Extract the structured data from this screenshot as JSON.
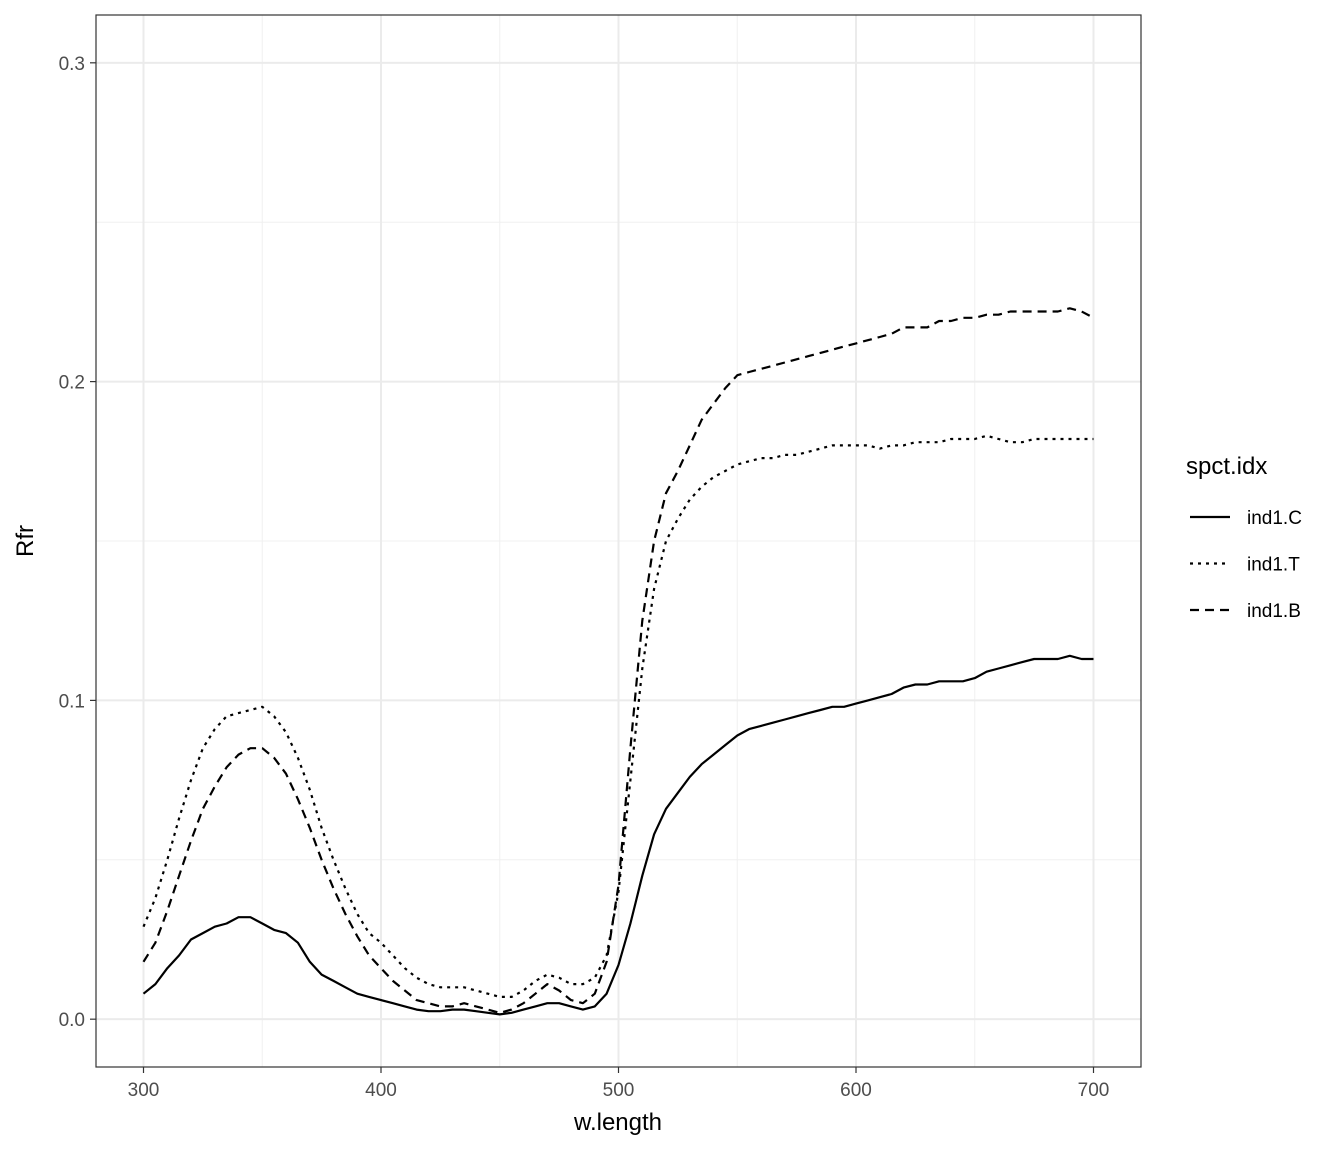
{
  "chart_data": {
    "type": "line",
    "xlabel": "w.length",
    "ylabel": "Rfr",
    "xlim": [
      280,
      720
    ],
    "ylim": [
      -0.015,
      0.315
    ],
    "x_ticks": [
      300,
      400,
      500,
      600,
      700
    ],
    "x_tick_labels": [
      "300",
      "400",
      "500",
      "600",
      "700"
    ],
    "y_ticks": [
      0.0,
      0.1,
      0.2,
      0.3
    ],
    "y_tick_labels": [
      "0.0",
      "0.1",
      "0.2",
      "0.3"
    ],
    "x_minor_ticks": [
      350,
      450,
      550,
      650
    ],
    "y_minor_ticks": [
      0.05,
      0.15,
      0.25
    ],
    "grid": true,
    "legend": {
      "title": "spct.idx",
      "position": "right",
      "entries": [
        "ind1.C",
        "ind1.T",
        "ind1.B"
      ]
    },
    "series": [
      {
        "name": "ind1.C",
        "linetype": "solid",
        "x": [
          300,
          305,
          310,
          315,
          320,
          325,
          330,
          335,
          340,
          345,
          350,
          355,
          360,
          365,
          370,
          375,
          380,
          385,
          390,
          395,
          400,
          405,
          410,
          415,
          420,
          425,
          430,
          435,
          440,
          445,
          450,
          455,
          460,
          465,
          470,
          475,
          480,
          485,
          490,
          495,
          500,
          505,
          510,
          515,
          520,
          525,
          530,
          535,
          540,
          545,
          550,
          555,
          560,
          565,
          570,
          575,
          580,
          585,
          590,
          595,
          600,
          605,
          610,
          615,
          620,
          625,
          630,
          635,
          640,
          645,
          650,
          655,
          660,
          665,
          670,
          675,
          680,
          685,
          690,
          695,
          700
        ],
        "y": [
          0.008,
          0.011,
          0.016,
          0.02,
          0.025,
          0.027,
          0.029,
          0.03,
          0.032,
          0.032,
          0.03,
          0.028,
          0.027,
          0.024,
          0.018,
          0.014,
          0.012,
          0.01,
          0.008,
          0.007,
          0.006,
          0.005,
          0.004,
          0.003,
          0.0025,
          0.0025,
          0.003,
          0.003,
          0.0025,
          0.002,
          0.0015,
          0.002,
          0.003,
          0.004,
          0.005,
          0.005,
          0.004,
          0.003,
          0.004,
          0.008,
          0.017,
          0.03,
          0.045,
          0.058,
          0.066,
          0.071,
          0.076,
          0.08,
          0.083,
          0.086,
          0.089,
          0.091,
          0.092,
          0.093,
          0.094,
          0.095,
          0.096,
          0.097,
          0.098,
          0.098,
          0.099,
          0.1,
          0.101,
          0.102,
          0.104,
          0.105,
          0.105,
          0.106,
          0.106,
          0.106,
          0.107,
          0.109,
          0.11,
          0.111,
          0.112,
          0.113,
          0.113,
          0.113,
          0.114,
          0.113,
          0.113
        ]
      },
      {
        "name": "ind1.T",
        "linetype": "dotted",
        "x": [
          300,
          305,
          310,
          315,
          320,
          325,
          330,
          335,
          340,
          345,
          350,
          355,
          360,
          365,
          370,
          375,
          380,
          385,
          390,
          395,
          400,
          405,
          410,
          415,
          420,
          425,
          430,
          435,
          440,
          445,
          450,
          455,
          460,
          465,
          470,
          475,
          480,
          485,
          490,
          495,
          500,
          505,
          510,
          515,
          520,
          525,
          530,
          535,
          540,
          545,
          550,
          555,
          560,
          565,
          570,
          575,
          580,
          585,
          590,
          595,
          600,
          605,
          610,
          615,
          620,
          625,
          630,
          635,
          640,
          645,
          650,
          655,
          660,
          665,
          670,
          675,
          680,
          685,
          690,
          695,
          700
        ],
        "y": [
          0.029,
          0.038,
          0.05,
          0.063,
          0.075,
          0.085,
          0.091,
          0.095,
          0.096,
          0.097,
          0.098,
          0.095,
          0.09,
          0.082,
          0.072,
          0.06,
          0.05,
          0.041,
          0.033,
          0.027,
          0.024,
          0.02,
          0.016,
          0.013,
          0.011,
          0.01,
          0.01,
          0.01,
          0.009,
          0.008,
          0.007,
          0.007,
          0.009,
          0.012,
          0.014,
          0.013,
          0.011,
          0.011,
          0.013,
          0.02,
          0.04,
          0.075,
          0.11,
          0.135,
          0.15,
          0.157,
          0.163,
          0.167,
          0.17,
          0.172,
          0.174,
          0.175,
          0.176,
          0.176,
          0.177,
          0.177,
          0.178,
          0.179,
          0.18,
          0.18,
          0.18,
          0.18,
          0.179,
          0.18,
          0.18,
          0.181,
          0.181,
          0.181,
          0.182,
          0.182,
          0.182,
          0.183,
          0.182,
          0.181,
          0.181,
          0.182,
          0.182,
          0.182,
          0.182,
          0.182,
          0.182
        ]
      },
      {
        "name": "ind1.B",
        "linetype": "dashed",
        "x": [
          300,
          305,
          310,
          315,
          320,
          325,
          330,
          335,
          340,
          345,
          350,
          355,
          360,
          365,
          370,
          375,
          380,
          385,
          390,
          395,
          400,
          405,
          410,
          415,
          420,
          425,
          430,
          435,
          440,
          445,
          450,
          455,
          460,
          465,
          470,
          475,
          480,
          485,
          490,
          495,
          500,
          505,
          510,
          515,
          520,
          525,
          530,
          535,
          540,
          545,
          550,
          555,
          560,
          565,
          570,
          575,
          580,
          585,
          590,
          595,
          600,
          605,
          610,
          615,
          620,
          625,
          630,
          635,
          640,
          645,
          650,
          655,
          660,
          665,
          670,
          675,
          680,
          685,
          690,
          695,
          700
        ],
        "y": [
          0.018,
          0.024,
          0.034,
          0.045,
          0.056,
          0.066,
          0.073,
          0.079,
          0.083,
          0.085,
          0.085,
          0.082,
          0.077,
          0.069,
          0.06,
          0.05,
          0.041,
          0.033,
          0.026,
          0.02,
          0.016,
          0.012,
          0.009,
          0.006,
          0.005,
          0.004,
          0.004,
          0.005,
          0.004,
          0.003,
          0.002,
          0.003,
          0.005,
          0.008,
          0.011,
          0.009,
          0.006,
          0.005,
          0.008,
          0.018,
          0.042,
          0.085,
          0.125,
          0.15,
          0.165,
          0.172,
          0.18,
          0.188,
          0.193,
          0.198,
          0.202,
          0.203,
          0.204,
          0.205,
          0.206,
          0.207,
          0.208,
          0.209,
          0.21,
          0.211,
          0.212,
          0.213,
          0.214,
          0.215,
          0.217,
          0.217,
          0.217,
          0.219,
          0.219,
          0.22,
          0.22,
          0.221,
          0.221,
          0.222,
          0.222,
          0.222,
          0.222,
          0.222,
          0.223,
          0.222,
          0.22
        ]
      }
    ]
  }
}
